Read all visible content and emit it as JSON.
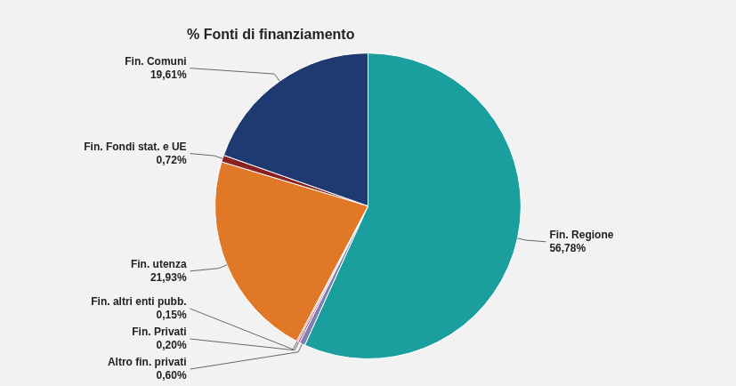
{
  "chart_data": {
    "type": "pie",
    "title": "% Fonti di finanziamento",
    "categories": [
      "Fin. Regione",
      "Altro fin. privati",
      "Fin. Privati",
      "Fin. altri enti pubb.",
      "Fin. utenza",
      "Fin. Fondi stat. e UE",
      "Fin. Comuni"
    ],
    "values": [
      56.78,
      0.6,
      0.2,
      0.15,
      21.93,
      0.72,
      19.61
    ],
    "value_labels": [
      "56,78%",
      "0,60%",
      "0,20%",
      "0,15%",
      "21,93%",
      "0,72%",
      "19,61%"
    ],
    "colors": [
      "#1a9e9e",
      "#8080b0",
      "#c04070",
      "#b06060",
      "#e07828",
      "#8b2020",
      "#1e3a70"
    ],
    "data_labels": true
  }
}
